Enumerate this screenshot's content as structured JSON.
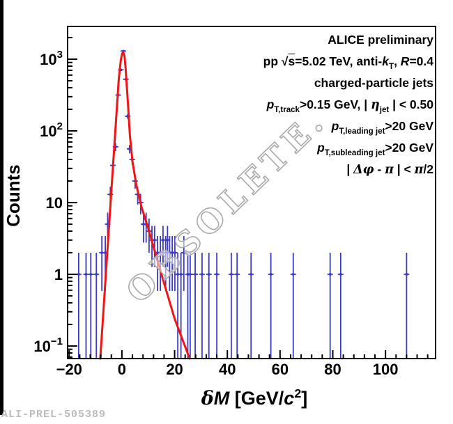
{
  "watermark": {
    "text": "OBSOLETE.",
    "color": "#a9a9a9"
  },
  "footer_id": "ALI-PREL-505389",
  "chart_data": {
    "type": "histogram",
    "yscale": "log",
    "xlim": [
      -20.6,
      119.0
    ],
    "ylim": [
      0.0668,
      2860
    ],
    "xlabel_text": "δM [GeV/c2]",
    "xlabel_segments": [
      {
        "g": "δ"
      },
      {
        "i": "M"
      },
      {
        "t": " [GeV/"
      },
      {
        "i": "c"
      },
      {
        "sup": "2"
      },
      {
        "t": "]"
      }
    ],
    "ylabel": "Counts",
    "x_major_ticks": [
      {
        "v": -20,
        "label": "−20"
      },
      {
        "v": 0,
        "label": "0"
      },
      {
        "v": 20,
        "label": "20"
      },
      {
        "v": 40,
        "label": "40"
      },
      {
        "v": 60,
        "label": "60"
      },
      {
        "v": 80,
        "label": "80"
      },
      {
        "v": 100,
        "label": "100"
      }
    ],
    "x_minor_step": 4,
    "y_major_ticks": [
      {
        "v": 1000,
        "base": "10",
        "exp": "3"
      },
      {
        "v": 100,
        "base": "10",
        "exp": "2"
      },
      {
        "v": 10,
        "base": "10",
        "exp": ""
      },
      {
        "v": 1,
        "base": "1",
        "exp": ""
      },
      {
        "v": 0.1,
        "base": "10",
        "exp": "−1"
      }
    ],
    "annotations": [
      {
        "text": "ALICE preliminary",
        "segments": [
          {
            "t": "ALICE preliminary"
          }
        ]
      },
      {
        "text": "pp √s=5.02 TeV, anti-kT, R=0.4",
        "segments": [
          {
            "t": "pp  "
          },
          {
            "sqrt": "s"
          },
          {
            "t": "=5.02 TeV, anti-"
          },
          {
            "i": "k"
          },
          {
            "sub": "T"
          },
          {
            "t": ",  "
          },
          {
            "i": "R"
          },
          {
            "t": "=0.4"
          }
        ]
      },
      {
        "text": "charged-particle jets",
        "segments": [
          {
            "t": "charged-particle jets"
          }
        ]
      },
      {
        "text": "pT,track>0.15 GeV, | ηjet | < 0.50",
        "segments": [
          {
            "i": "p"
          },
          {
            "sub": "T,track"
          },
          {
            "t": ">0.15 GeV, | "
          },
          {
            "g": "η"
          },
          {
            "sub": "jet"
          },
          {
            "t": " | < 0.50"
          }
        ]
      },
      {
        "text": "pT,leading jet>20 GeV",
        "segments": [
          {
            "i": "p"
          },
          {
            "sub": "T,leading jet"
          },
          {
            "t": ">20 GeV"
          }
        ]
      },
      {
        "text": "pT,subleading jet>20 GeV",
        "segments": [
          {
            "i": "p"
          },
          {
            "sub": "T,subleading jet"
          },
          {
            "t": ">20 GeV"
          }
        ]
      },
      {
        "text": "| Δφ - π | < π/2",
        "segments": [
          {
            "t": "| "
          },
          {
            "g": "Δφ"
          },
          {
            "t": " - "
          },
          {
            "g": "π"
          },
          {
            "t": " | < "
          },
          {
            "g": "π"
          },
          {
            "t": "/2"
          }
        ]
      }
    ],
    "series": [
      {
        "name": "counts-data",
        "type": "points-with-poisson-errors",
        "color": "#3b3bc8",
        "points": [
          [
            -16.4,
            1
          ],
          [
            -13.6,
            1
          ],
          [
            -11.8,
            1
          ],
          [
            -9.7,
            1
          ],
          [
            -7.6,
            2
          ],
          [
            -6.3,
            2
          ],
          [
            -5.4,
            5
          ],
          [
            -4.4,
            13
          ],
          [
            -3.4,
            33
          ],
          [
            -2.4,
            60
          ],
          [
            -1.4,
            316
          ],
          [
            -0.4,
            710
          ],
          [
            0.55,
            1300
          ],
          [
            1.5,
            525
          ],
          [
            2.2,
            160
          ],
          [
            2.9,
            56
          ],
          [
            3.9,
            40
          ],
          [
            5.0,
            20
          ],
          [
            6.0,
            13
          ],
          [
            7.1,
            10
          ],
          [
            8.2,
            5
          ],
          [
            9.2,
            5
          ],
          [
            10.3,
            4
          ],
          [
            11.4,
            3
          ],
          [
            12.4,
            3
          ],
          [
            13.5,
            2
          ],
          [
            14.6,
            2
          ],
          [
            15.6,
            3
          ],
          [
            16.6,
            2
          ],
          [
            17.3,
            3
          ],
          [
            18.1,
            2
          ],
          [
            19.1,
            2
          ],
          [
            20.1,
            2
          ],
          [
            21.2,
            1
          ],
          [
            22.4,
            1
          ],
          [
            23.5,
            2
          ],
          [
            25.0,
            1
          ],
          [
            25.9,
            1
          ],
          [
            27.8,
            1
          ],
          [
            30.4,
            1
          ],
          [
            33.0,
            1
          ],
          [
            36.0,
            1
          ],
          [
            41.5,
            1
          ],
          [
            43.7,
            1
          ],
          [
            49.0,
            1
          ],
          [
            56.5,
            1
          ],
          [
            65.0,
            1
          ],
          [
            79.0,
            1
          ],
          [
            83.0,
            1
          ],
          [
            108.0,
            1
          ]
        ]
      },
      {
        "name": "fit-curve",
        "type": "curve",
        "color": "#f01414",
        "anchors_log10": [
          [
            -8.2,
            -1.175
          ],
          [
            -1.2,
            2.72
          ],
          [
            -0.4,
            2.99
          ],
          [
            0.1,
            3.08
          ],
          [
            0.55,
            3.097
          ],
          [
            1.0,
            3.04
          ],
          [
            1.4,
            2.88
          ],
          [
            1.9,
            2.6
          ],
          [
            2.4,
            2.32
          ],
          [
            3.0,
            1.95
          ],
          [
            4.0,
            1.58
          ],
          [
            5.5,
            1.24
          ],
          [
            7.5,
            0.93
          ],
          [
            10.0,
            0.64
          ],
          [
            14.6,
            0.05
          ],
          [
            20.0,
            -0.62
          ],
          [
            25.7,
            -1.175
          ]
        ]
      }
    ]
  }
}
